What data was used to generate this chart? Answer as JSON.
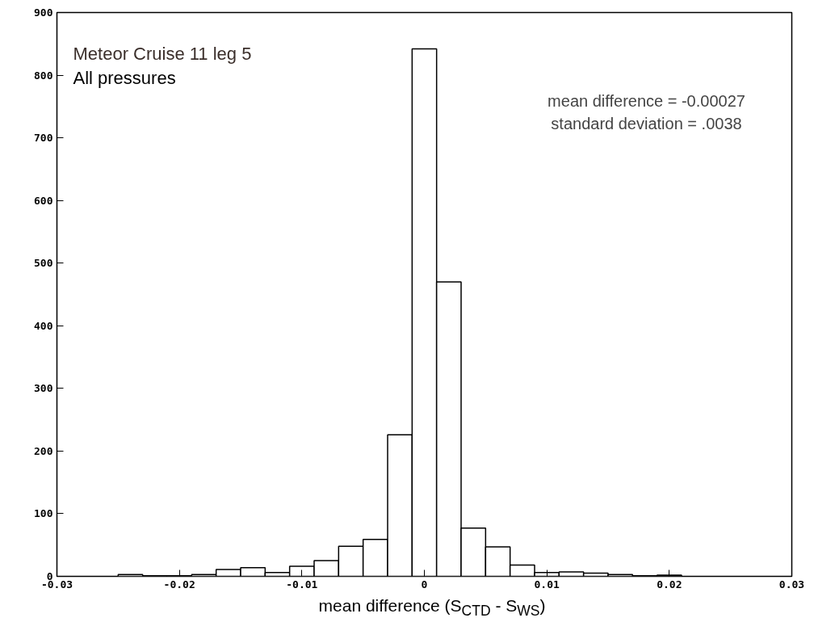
{
  "chart_data": {
    "type": "histogram",
    "bins": [
      -0.025,
      -0.023,
      -0.021,
      -0.019,
      -0.017,
      -0.015,
      -0.013,
      -0.011,
      -0.009,
      -0.007,
      -0.005,
      -0.003,
      -0.001,
      0.001,
      0.003,
      0.005,
      0.007,
      0.009,
      0.011,
      0.013,
      0.015,
      0.017,
      0.019,
      0.021,
      0.023,
      0.025
    ],
    "values": [
      3,
      1,
      1,
      3,
      11,
      14,
      6,
      16,
      25,
      48,
      59,
      226,
      842,
      470,
      77,
      47,
      18,
      6,
      7,
      5,
      3,
      1,
      2,
      0,
      0
    ],
    "color": "#ffffff",
    "xlabel": "mean difference (S$_{CTD}$ - S$_{WS}$)",
    "xlim": [
      -0.03,
      0.03
    ],
    "xticks": [
      {
        "value": -0.03,
        "label": "-0.03"
      },
      {
        "value": -0.02,
        "label": "-0.02"
      },
      {
        "value": -0.01,
        "label": "-0.01"
      },
      0,
      {
        "value": 0.01,
        "label": "0.01"
      },
      {
        "value": 0.02,
        "label": "0.02"
      },
      {
        "value": 0.03,
        "label": "0.03"
      }
    ],
    "ylim": [
      0,
      900
    ],
    "yticks": [
      0,
      100,
      200,
      300,
      400,
      500,
      600,
      700,
      800,
      900
    ],
    "grid": false,
    "annotations": [
      "Meteor Cruise 11  leg 5",
      "All pressures",
      "mean difference = -0.00027",
      "standard deviation = .0038"
    ]
  }
}
